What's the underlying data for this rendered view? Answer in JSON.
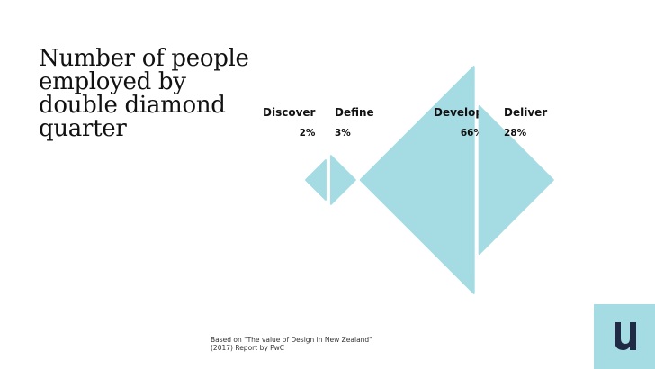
{
  "slide": {
    "title": "Number of people\nemployed by\ndouble diamond\nquarter",
    "source_note": "Based on \"The value of Design in New Zealand\" (2017) Report by PwC"
  },
  "colors": {
    "shape": "#a5dbe3",
    "logo_bg": "#a5dbe3",
    "logo_mark": "#1f2a44"
  },
  "logo": {
    "icon": "u-logo-icon"
  },
  "chart_data": {
    "type": "bar",
    "shape": "triangle",
    "categories": [
      "Discover",
      "Define",
      "Develop",
      "Deliver"
    ],
    "values": [
      2,
      3,
      66,
      28
    ],
    "value_labels": [
      "2%",
      "3%",
      "66%",
      "28%"
    ],
    "unit": "%",
    "directions": [
      "left",
      "right",
      "left",
      "right"
    ],
    "title": "",
    "xlabel": "",
    "ylabel": ""
  }
}
